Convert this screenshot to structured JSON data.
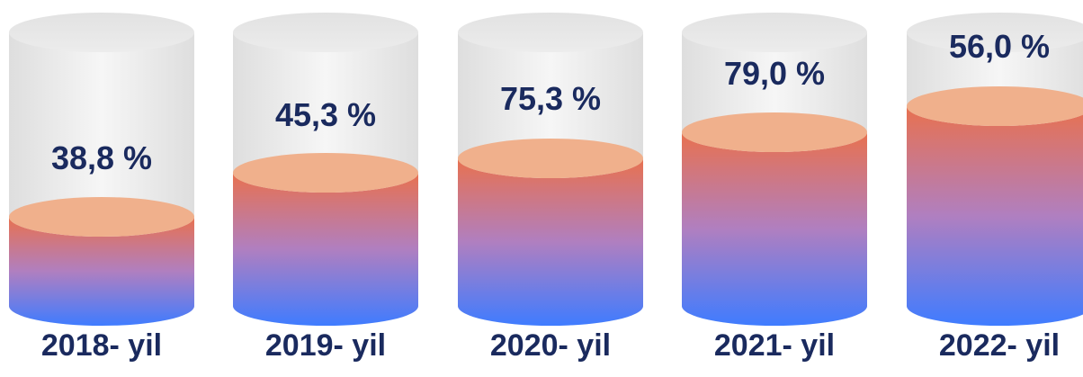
{
  "colors": {
    "text": "#1a2a5e",
    "glass_top": "#e6e6e6",
    "glass_body_light": "#f4f4f4",
    "glass_body_dark": "#dcdcdc",
    "fill_top": "#e8714f",
    "fill_mid": "#b07fc0",
    "fill_bottom": "#3f7cff",
    "fill_cap": "#f0b08c"
  },
  "chart_data": {
    "type": "bar",
    "style": "3d-cylinder",
    "categories": [
      "2018- yil",
      "2019- yil",
      "2020- yil",
      "2021- yil",
      "2022- yil"
    ],
    "values": [
      38.8,
      45.3,
      75.3,
      79.0,
      56.0
    ],
    "value_labels": [
      "38,8 %",
      "45,3 %",
      "75,3 %",
      "79,0 %",
      "56,0 %"
    ],
    "unit": "%",
    "grid": false,
    "legend": "none"
  }
}
